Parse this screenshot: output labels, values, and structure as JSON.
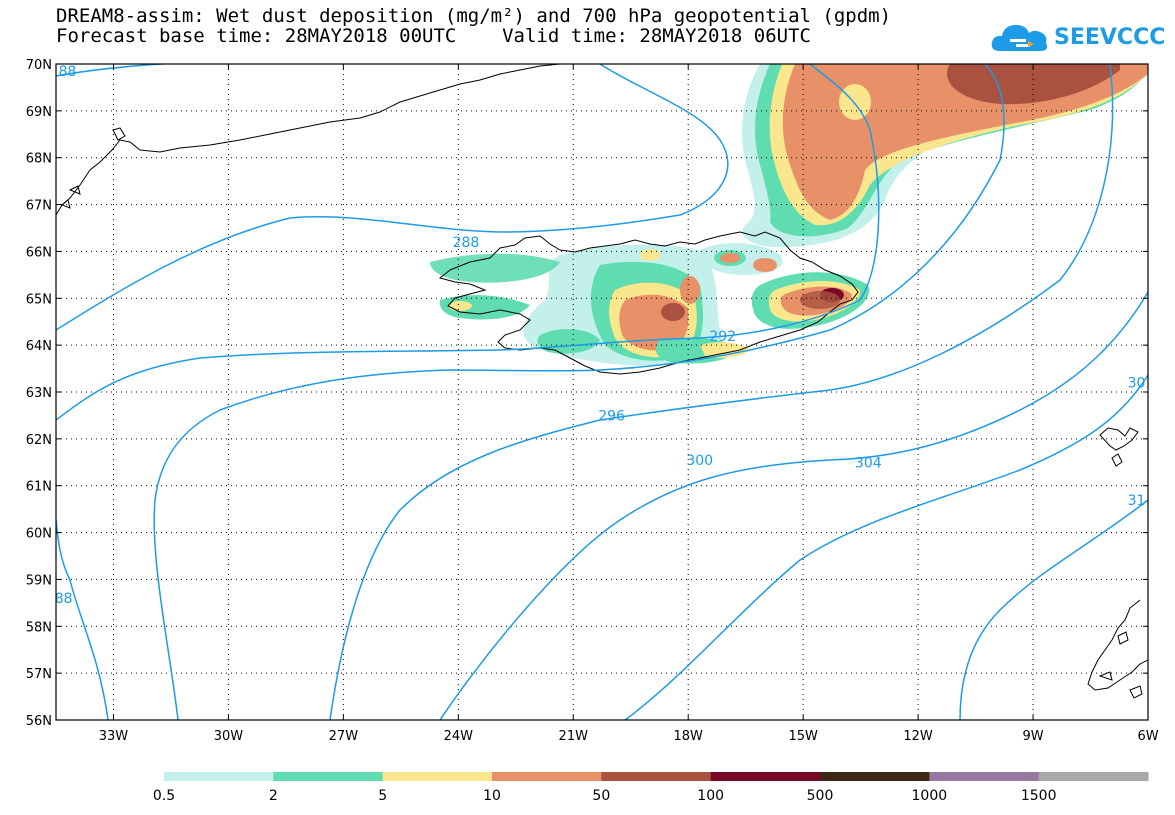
{
  "title": {
    "line1": "DREAM8-assim: Wet dust deposition (mg/m²) and 700 hPa geopotential (gpdm)",
    "line2": "Forecast base time: 28MAY2018 00UTC    Valid time: 28MAY2018 06UTC"
  },
  "logo": {
    "text": "SEEVCCC",
    "icon": "cloud-logo-icon"
  },
  "map": {
    "lon_range": [
      -34.5,
      -6
    ],
    "lat_range": [
      56,
      70
    ],
    "lat_ticks": [
      {
        "lat": 70,
        "label": "70N"
      },
      {
        "lat": 69,
        "label": "69N"
      },
      {
        "lat": 68,
        "label": "68N"
      },
      {
        "lat": 67,
        "label": "67N"
      },
      {
        "lat": 66,
        "label": "66N"
      },
      {
        "lat": 65,
        "label": "65N"
      },
      {
        "lat": 64,
        "label": "64N"
      },
      {
        "lat": 63,
        "label": "63N"
      },
      {
        "lat": 62,
        "label": "62N"
      },
      {
        "lat": 61,
        "label": "61N"
      },
      {
        "lat": 60,
        "label": "60N"
      },
      {
        "lat": 59,
        "label": "59N"
      },
      {
        "lat": 58,
        "label": "58N"
      },
      {
        "lat": 57,
        "label": "57N"
      },
      {
        "lat": 56,
        "label": "56N"
      }
    ],
    "lon_ticks": [
      {
        "lon": -33,
        "label": "33W"
      },
      {
        "lon": -30,
        "label": "30W"
      },
      {
        "lon": -27,
        "label": "27W"
      },
      {
        "lon": -24,
        "label": "24W"
      },
      {
        "lon": -21,
        "label": "21W"
      },
      {
        "lon": -18,
        "label": "18W"
      },
      {
        "lon": -15,
        "label": "15W"
      },
      {
        "lon": -12,
        "label": "12W"
      },
      {
        "lon": -9,
        "label": "9W"
      },
      {
        "lon": -6,
        "label": "6W"
      }
    ],
    "contour_color": "#1e9be6",
    "contour_labels": [
      {
        "text": "288",
        "lon": -23.8,
        "lat": 66.2
      },
      {
        "text": "292",
        "lon": -17.1,
        "lat": 64.2
      },
      {
        "text": "296",
        "lon": -20.0,
        "lat": 62.5
      },
      {
        "text": "300",
        "lon": -17.7,
        "lat": 61.55
      },
      {
        "text": "304",
        "lon": -13.3,
        "lat": 61.5
      },
      {
        "text": "88",
        "lon": -34.2,
        "lat": 69.85
      },
      {
        "text": "88",
        "lon": -34.3,
        "lat": 58.6
      },
      {
        "text": "30",
        "lon": -6.3,
        "lat": 63.2
      },
      {
        "text": "31",
        "lon": -6.3,
        "lat": 60.7
      }
    ]
  },
  "colorbar": {
    "bins": [
      {
        "color": "#c3f0ea"
      },
      {
        "color": "#5fdcb0"
      },
      {
        "color": "#fae68c"
      },
      {
        "color": "#e89168"
      },
      {
        "color": "#a8523f"
      },
      {
        "color": "#780a28"
      },
      {
        "color": "#3c2814"
      },
      {
        "color": "#9678a0"
      },
      {
        "color": "#a8a8a8"
      }
    ],
    "labels": [
      "0.5",
      "2",
      "5",
      "10",
      "50",
      "100",
      "500",
      "1000",
      "1500"
    ]
  }
}
